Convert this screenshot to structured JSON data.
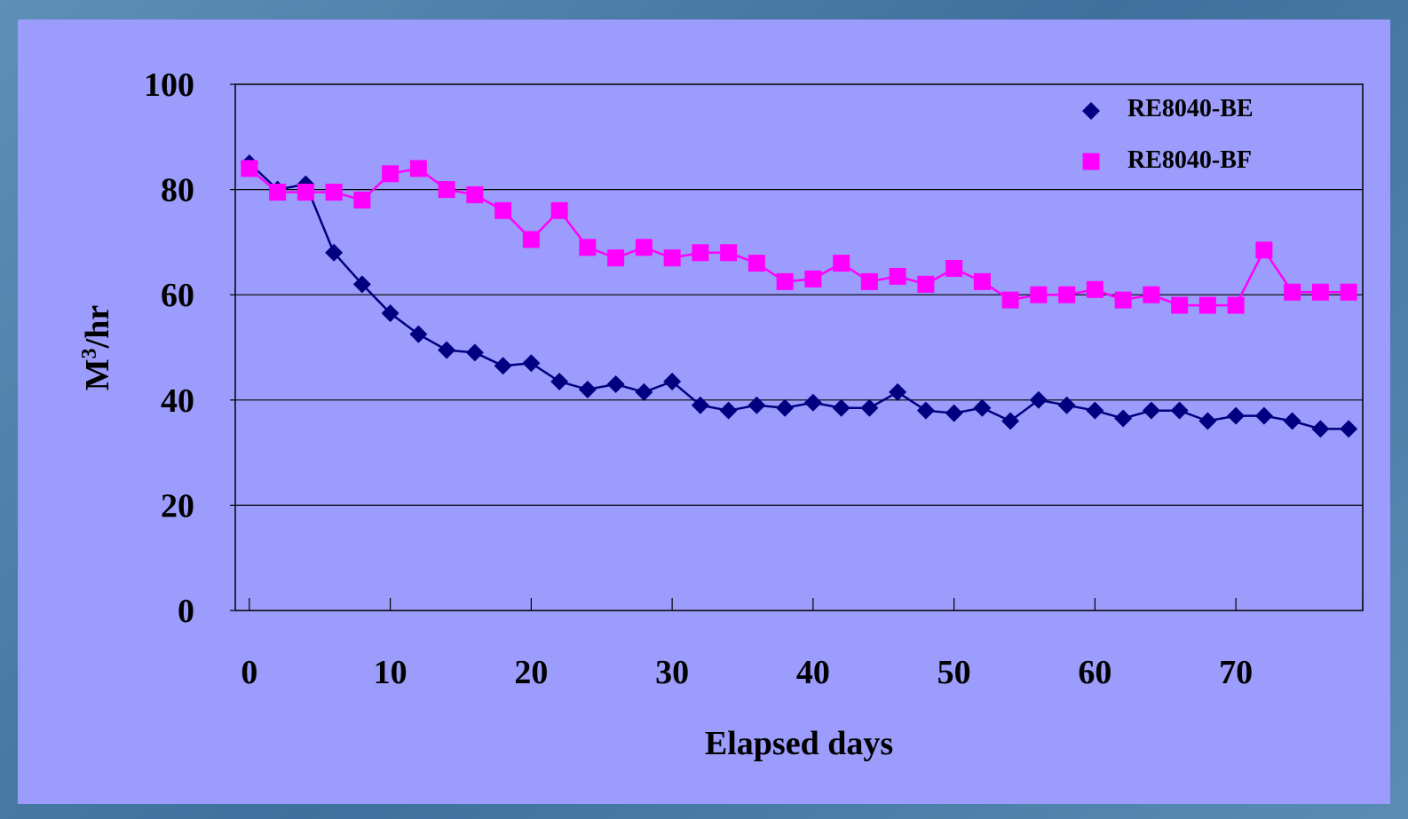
{
  "chart_data": {
    "type": "line",
    "xlabel": "Elapsed days",
    "ylabel_base": "M",
    "ylabel_sup": "3",
    "ylabel_tail": "/hr",
    "xlim": [
      -1,
      79
    ],
    "ylim": [
      0,
      100
    ],
    "x_ticks": [
      "0",
      "10",
      "20",
      "30",
      "40",
      "50",
      "60",
      "70"
    ],
    "y_ticks": [
      "0",
      "20",
      "40",
      "60",
      "80",
      "100"
    ],
    "grid": "horizontal",
    "legend_position": "top-right",
    "series": [
      {
        "name": "RE8040-BE",
        "marker": "diamond",
        "color": "#000080",
        "points": [
          [
            0,
            85
          ],
          [
            2,
            80
          ],
          [
            4,
            81
          ],
          [
            6,
            68
          ],
          [
            8,
            62
          ],
          [
            10,
            56.5
          ],
          [
            12,
            52.5
          ],
          [
            14,
            49.5
          ],
          [
            16,
            49
          ],
          [
            18,
            46.5
          ],
          [
            20,
            47
          ],
          [
            22,
            43.5
          ],
          [
            24,
            42
          ],
          [
            26,
            43
          ],
          [
            28,
            41.5
          ],
          [
            30,
            43.5
          ],
          [
            32,
            39
          ],
          [
            34,
            38
          ],
          [
            36,
            39
          ],
          [
            38,
            38.5
          ],
          [
            40,
            39.5
          ],
          [
            42,
            38.5
          ],
          [
            44,
            38.5
          ],
          [
            46,
            41.5
          ],
          [
            48,
            38
          ],
          [
            50,
            37.5
          ],
          [
            52,
            38.5
          ],
          [
            54,
            36
          ],
          [
            56,
            40
          ],
          [
            58,
            39
          ],
          [
            60,
            38
          ],
          [
            62,
            36.5
          ],
          [
            64,
            38
          ],
          [
            66,
            38
          ],
          [
            68,
            36
          ],
          [
            70,
            37
          ],
          [
            72,
            37
          ],
          [
            74,
            36
          ],
          [
            76,
            34.5
          ],
          [
            78,
            34.5
          ]
        ]
      },
      {
        "name": "RE8040-BF",
        "marker": "square",
        "color": "#ff00ff",
        "points": [
          [
            0,
            84
          ],
          [
            2,
            79.5
          ],
          [
            4,
            79.5
          ],
          [
            6,
            79.5
          ],
          [
            8,
            78
          ],
          [
            10,
            83
          ],
          [
            12,
            84
          ],
          [
            14,
            80
          ],
          [
            16,
            79
          ],
          [
            18,
            76
          ],
          [
            20,
            70.5
          ],
          [
            22,
            76
          ],
          [
            24,
            69
          ],
          [
            26,
            67
          ],
          [
            28,
            69
          ],
          [
            30,
            67
          ],
          [
            32,
            68
          ],
          [
            34,
            68
          ],
          [
            36,
            66
          ],
          [
            38,
            62.5
          ],
          [
            40,
            63
          ],
          [
            42,
            66
          ],
          [
            44,
            62.5
          ],
          [
            46,
            63.5
          ],
          [
            48,
            62
          ],
          [
            50,
            65
          ],
          [
            52,
            62.5
          ],
          [
            54,
            59
          ],
          [
            56,
            60
          ],
          [
            58,
            60
          ],
          [
            60,
            61
          ],
          [
            62,
            59
          ],
          [
            64,
            60
          ],
          [
            66,
            58
          ],
          [
            68,
            58
          ],
          [
            70,
            58
          ],
          [
            72,
            68.5
          ],
          [
            74,
            60.5
          ],
          [
            76,
            60.5
          ],
          [
            78,
            60.5
          ]
        ]
      }
    ]
  }
}
